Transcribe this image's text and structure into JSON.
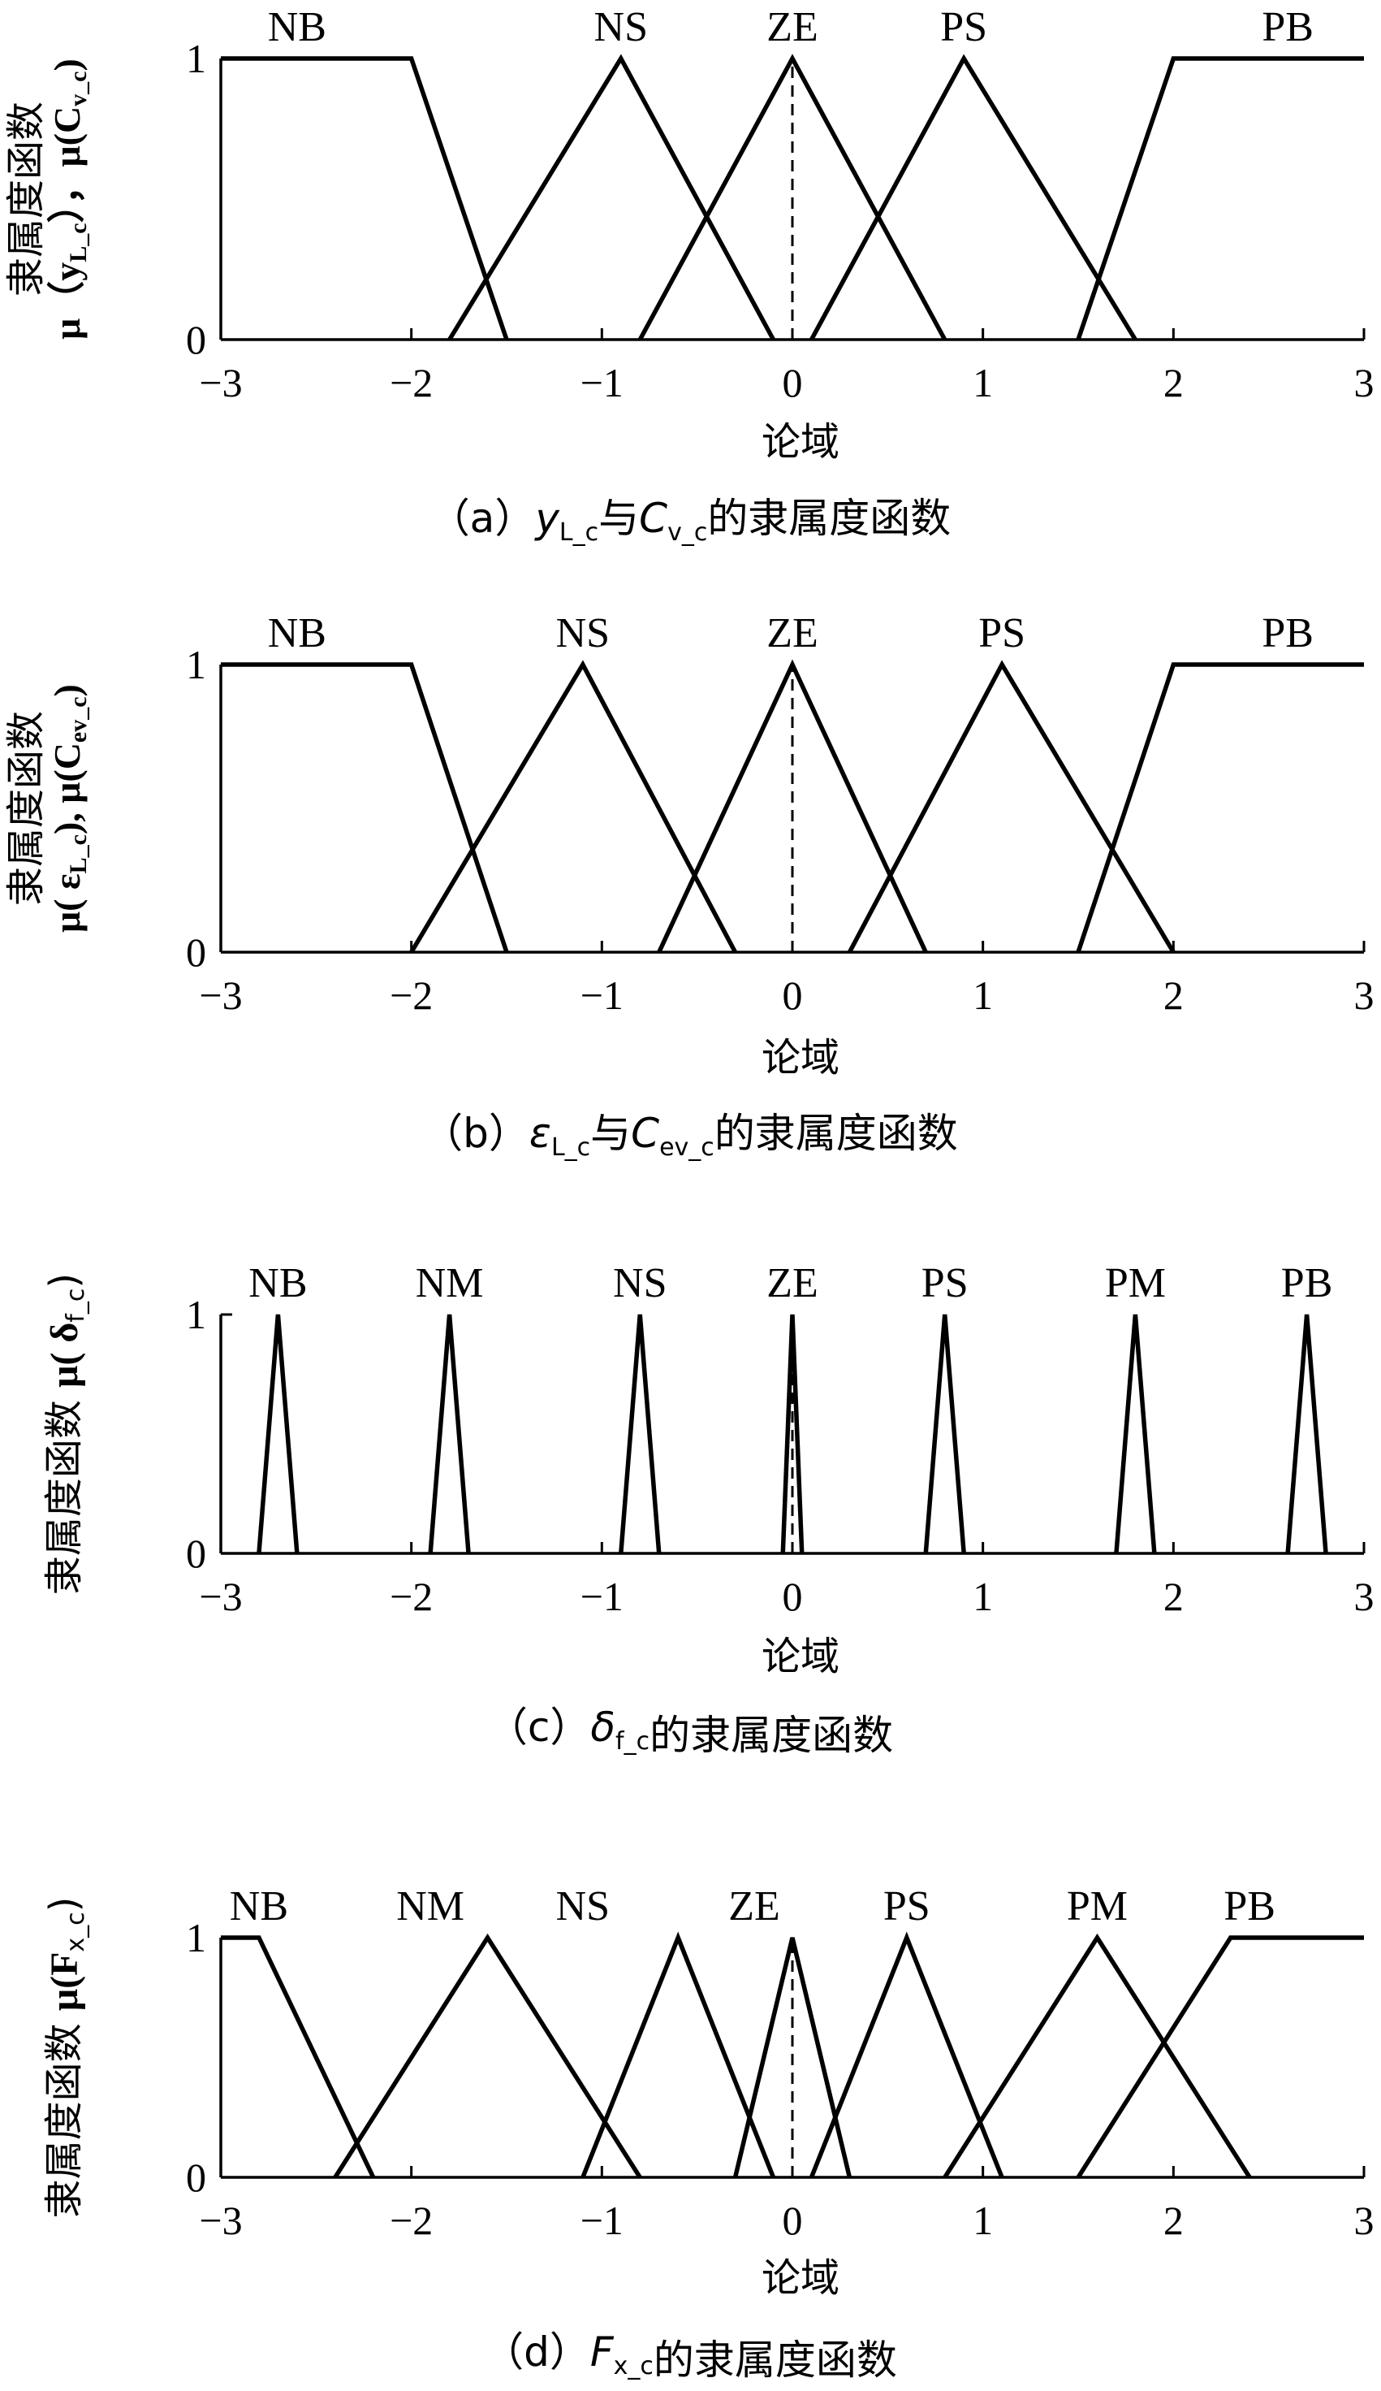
{
  "chart_data": [
    {
      "type": "line",
      "panel": "a",
      "caption": {
        "prefix": "（a）",
        "var1": "y",
        "sub1": "L_c",
        "mid": "与",
        "var2": "C",
        "sub2": "v_c",
        "suffix": "的隶属度函数"
      },
      "ylabel": {
        "cn": "隶属度函数",
        "math": "μ（y",
        "sub1": "L_c",
        "mid": "），μ(C",
        "sub2": "v_c",
        "end": ")"
      },
      "xlabel": "论域",
      "xlim": [
        -3,
        3
      ],
      "ylim": [
        0,
        1
      ],
      "xticks": [
        "−3",
        "−2",
        "−1",
        "0",
        "1",
        "2",
        "3"
      ],
      "yticks": [
        "0",
        "1"
      ],
      "zero_dashed_line": true,
      "sets": [
        {
          "name": "NB",
          "points": [
            [
              -3,
              1
            ],
            [
              -2,
              1
            ],
            [
              -1.5,
              0
            ]
          ],
          "label_x": -2.6
        },
        {
          "name": "NS",
          "points": [
            [
              -1.8,
              0
            ],
            [
              -0.9,
              1
            ],
            [
              -0.1,
              0
            ]
          ],
          "label_x": -0.9
        },
        {
          "name": "ZE",
          "points": [
            [
              -0.8,
              0
            ],
            [
              0,
              1
            ],
            [
              0.8,
              0
            ]
          ],
          "label_x": 0
        },
        {
          "name": "PS",
          "points": [
            [
              0.1,
              0
            ],
            [
              0.9,
              1
            ],
            [
              1.8,
              0
            ]
          ],
          "label_x": 0.9
        },
        {
          "name": "PB",
          "points": [
            [
              1.5,
              0
            ],
            [
              2,
              1
            ],
            [
              3,
              1
            ]
          ],
          "label_x": 2.6
        }
      ]
    },
    {
      "type": "line",
      "panel": "b",
      "caption": {
        "prefix": "（b）",
        "var1": "ε",
        "sub1": "L_c",
        "mid": "与",
        "var2": "C",
        "sub2": "ev_c",
        "suffix": "的隶属度函数"
      },
      "ylabel": {
        "cn": "隶属度函数",
        "math": "μ( ε",
        "sub1": "L_c",
        "mid": "), μ(C",
        "sub2": "ev_c",
        "end": ")"
      },
      "xlabel": "论域",
      "xlim": [
        -3,
        3
      ],
      "ylim": [
        0,
        1
      ],
      "xticks": [
        "−3",
        "−2",
        "−1",
        "0",
        "1",
        "2",
        "3"
      ],
      "yticks": [
        "0",
        "1"
      ],
      "zero_dashed_line": true,
      "sets": [
        {
          "name": "NB",
          "points": [
            [
              -3,
              1
            ],
            [
              -2,
              1
            ],
            [
              -1.5,
              0
            ]
          ],
          "label_x": -2.6
        },
        {
          "name": "NS",
          "points": [
            [
              -2,
              0
            ],
            [
              -1.1,
              1
            ],
            [
              -0.3,
              0
            ]
          ],
          "label_x": -1.1
        },
        {
          "name": "ZE",
          "points": [
            [
              -0.7,
              0
            ],
            [
              0,
              1
            ],
            [
              0.7,
              0
            ]
          ],
          "label_x": 0
        },
        {
          "name": "PS",
          "points": [
            [
              0.3,
              0
            ],
            [
              1.1,
              1
            ],
            [
              2,
              0
            ]
          ],
          "label_x": 1.1
        },
        {
          "name": "PB",
          "points": [
            [
              1.5,
              0
            ],
            [
              2,
              1
            ],
            [
              3,
              1
            ]
          ],
          "label_x": 2.6
        }
      ]
    },
    {
      "type": "line",
      "panel": "c",
      "caption": {
        "prefix": "（c）",
        "var1": "δ",
        "sub1": "f_c",
        "mid": "",
        "var2": "",
        "sub2": "",
        "suffix": "的隶属度函数"
      },
      "ylabel": {
        "cn": "隶属度函数",
        "math": "μ( δ",
        "sub1": "f_c",
        "mid": ")",
        "sub2": "",
        "end": ""
      },
      "xlabel": "论域",
      "xlim": [
        -3,
        3
      ],
      "ylim": [
        0,
        1
      ],
      "xticks": [
        "−3",
        "−2",
        "−1",
        "0",
        "1",
        "2",
        "3"
      ],
      "yticks": [
        "0",
        "1"
      ],
      "zero_dashed_line": true,
      "sets": [
        {
          "name": "NB",
          "points": [
            [
              -2.8,
              0
            ],
            [
              -2.7,
              1
            ],
            [
              -2.6,
              0
            ]
          ],
          "label_x": -2.7
        },
        {
          "name": "NM",
          "points": [
            [
              -1.9,
              0
            ],
            [
              -1.8,
              1
            ],
            [
              -1.7,
              0
            ]
          ],
          "label_x": -1.8
        },
        {
          "name": "NS",
          "points": [
            [
              -0.9,
              0
            ],
            [
              -0.8,
              1
            ],
            [
              -0.7,
              0
            ]
          ],
          "label_x": -0.8
        },
        {
          "name": "ZE",
          "points": [
            [
              -0.05,
              0
            ],
            [
              0,
              1
            ],
            [
              0.05,
              0
            ]
          ],
          "label_x": 0
        },
        {
          "name": "PS",
          "points": [
            [
              0.7,
              0
            ],
            [
              0.8,
              1
            ],
            [
              0.9,
              0
            ]
          ],
          "label_x": 0.8
        },
        {
          "name": "PM",
          "points": [
            [
              1.7,
              0
            ],
            [
              1.8,
              1
            ],
            [
              1.9,
              0
            ]
          ],
          "label_x": 1.8
        },
        {
          "name": "PB",
          "points": [
            [
              2.6,
              0
            ],
            [
              2.7,
              1
            ],
            [
              2.8,
              0
            ]
          ],
          "label_x": 2.7
        }
      ]
    },
    {
      "type": "line",
      "panel": "d",
      "caption": {
        "prefix": "（d）",
        "var1": "F",
        "sub1": "x_c",
        "mid": "",
        "var2": "",
        "sub2": "",
        "suffix": "的隶属度函数"
      },
      "ylabel": {
        "cn": "隶属度函数",
        "math": "μ(F",
        "sub1": "x_c",
        "mid": ")",
        "sub2": "",
        "end": ""
      },
      "xlabel": "论域",
      "xlim": [
        -3,
        3
      ],
      "ylim": [
        0,
        1
      ],
      "xticks": [
        "−3",
        "−2",
        "−1",
        "0",
        "1",
        "2",
        "3"
      ],
      "yticks": [
        "0",
        "1"
      ],
      "zero_dashed_line": true,
      "sets": [
        {
          "name": "NB",
          "points": [
            [
              -3,
              1
            ],
            [
              -2.8,
              1
            ],
            [
              -2.2,
              0
            ]
          ],
          "label_x": -2.8
        },
        {
          "name": "NM",
          "points": [
            [
              -2.4,
              0
            ],
            [
              -1.6,
              1
            ],
            [
              -0.8,
              0
            ]
          ],
          "label_x": -1.9
        },
        {
          "name": "NS",
          "points": [
            [
              -1.1,
              0
            ],
            [
              -0.6,
              1
            ],
            [
              -0.1,
              0
            ]
          ],
          "label_x": -1.1
        },
        {
          "name": "ZE",
          "points": [
            [
              -0.3,
              0
            ],
            [
              0,
              1
            ],
            [
              0.3,
              0
            ]
          ],
          "label_x": -0.2
        },
        {
          "name": "PS",
          "points": [
            [
              0.1,
              0
            ],
            [
              0.6,
              1
            ],
            [
              1.1,
              0
            ]
          ],
          "label_x": 0.6
        },
        {
          "name": "PM",
          "points": [
            [
              0.8,
              0
            ],
            [
              1.6,
              1
            ],
            [
              2.4,
              0
            ]
          ],
          "label_x": 1.6
        },
        {
          "name": "PB",
          "points": [
            [
              1.5,
              0
            ],
            [
              2.3,
              1
            ],
            [
              3,
              1
            ]
          ],
          "label_x": 2.4
        }
      ]
    }
  ]
}
